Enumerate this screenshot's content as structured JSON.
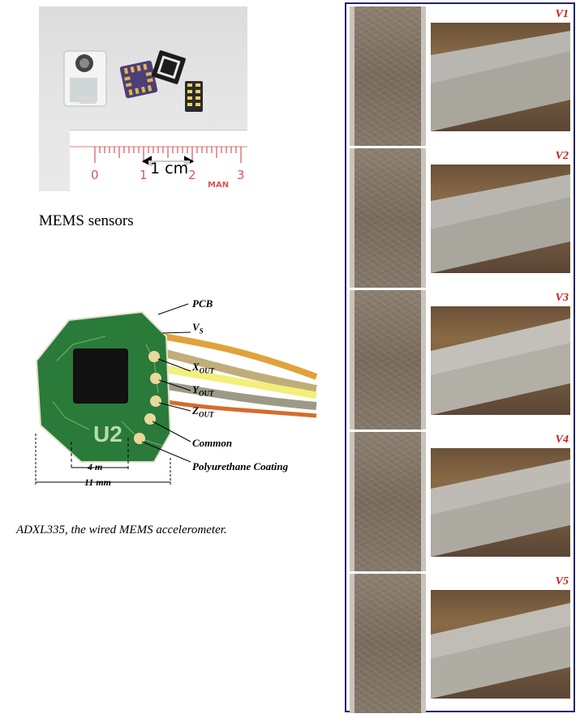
{
  "mems_figure": {
    "ruler_numbers": [
      "0",
      "1",
      "2",
      "3"
    ],
    "scale_label": "1 cm",
    "ruler_text": "MAN",
    "caption": "MEMS sensors"
  },
  "adxl_figure": {
    "labels": {
      "pcb": "PCB",
      "vs": "V",
      "vs_sub": "S",
      "xout": "X",
      "xout_sub": "OUT",
      "yout": "Y",
      "yout_sub": "OUT",
      "zout": "Z",
      "zout_sub": "OUT",
      "common": "Common",
      "coating": "Polyurethane Coating",
      "chip_marking": "U2"
    },
    "dimensions": {
      "small": "4 m",
      "large": "11 mm"
    },
    "caption": "ADXL335, the wired MEMS accelerometer."
  },
  "panel": {
    "border_color": "#23236e",
    "label_color": "#d11a1a",
    "rows": [
      {
        "label": "V1"
      },
      {
        "label": "V2"
      },
      {
        "label": "V3"
      },
      {
        "label": "V4"
      },
      {
        "label": "V5"
      }
    ]
  }
}
